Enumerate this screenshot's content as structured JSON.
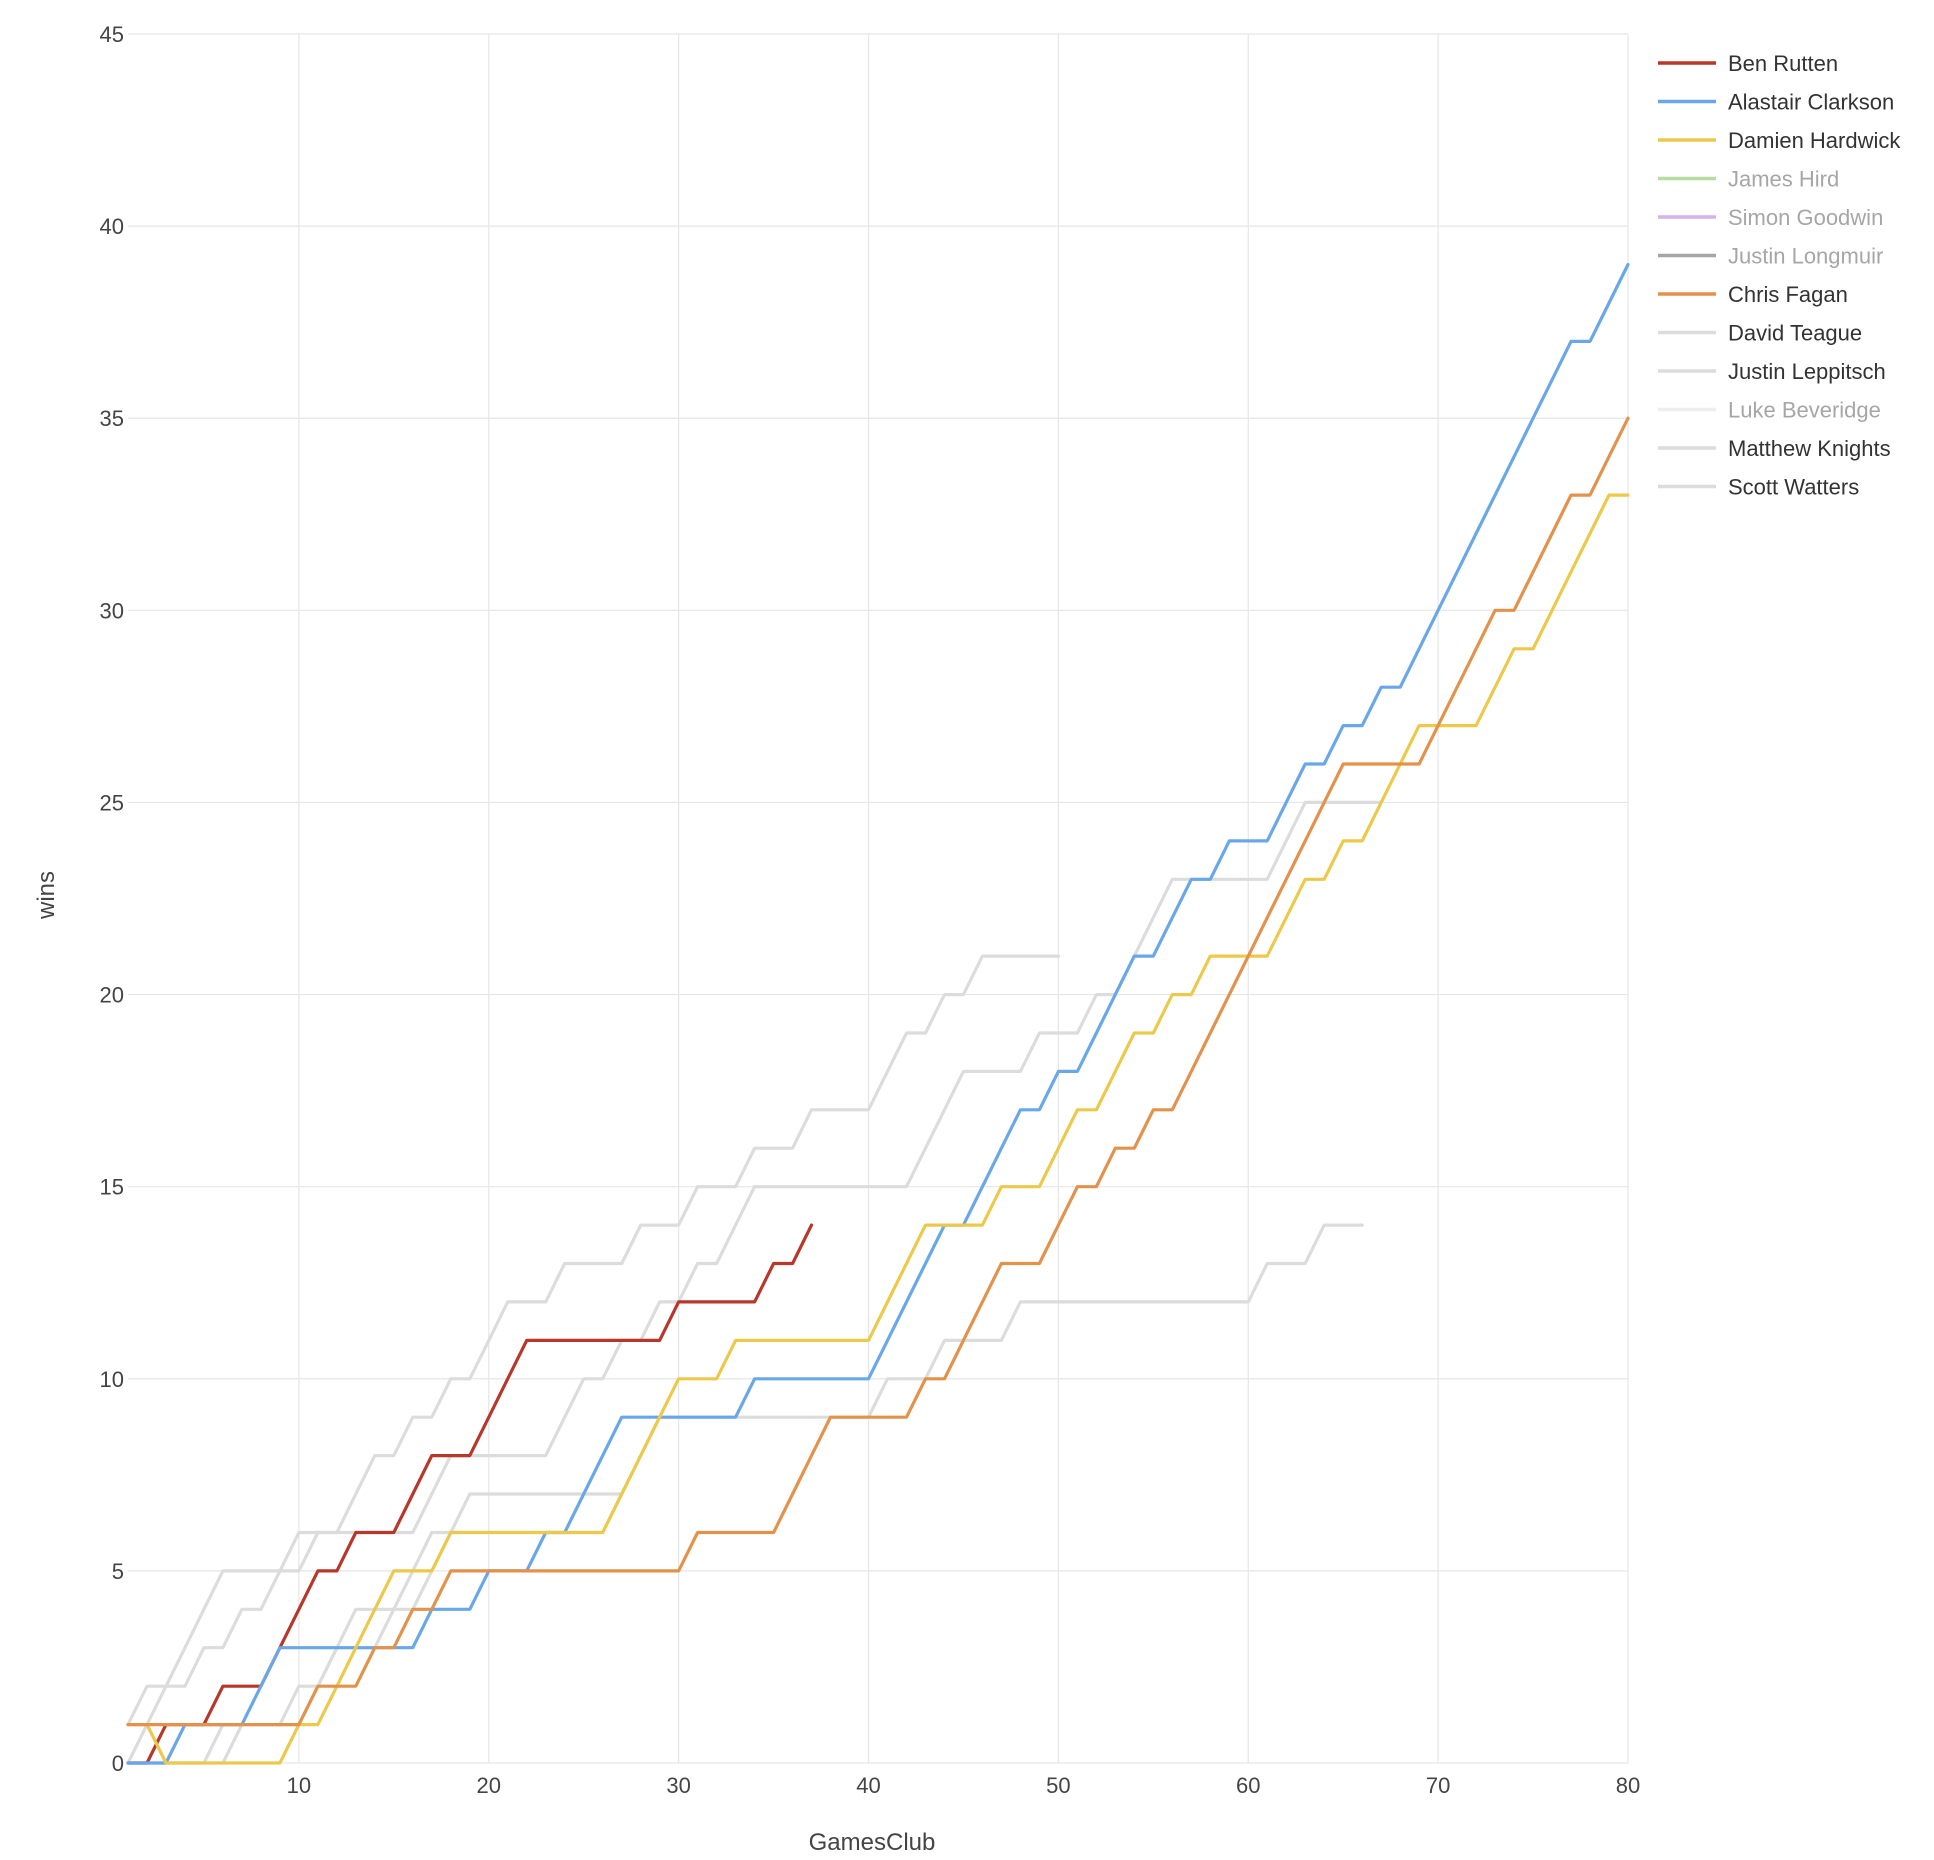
{
  "chart_data": {
    "type": "line",
    "xlabel": "GamesClub",
    "ylabel": "wins",
    "xlim": [
      1,
      80
    ],
    "ylim": [
      0,
      45
    ],
    "x_ticks": [
      10,
      20,
      30,
      40,
      50,
      60,
      70,
      80
    ],
    "y_ticks": [
      0,
      5,
      10,
      15,
      20,
      25,
      30,
      35,
      40,
      45
    ],
    "grid": true,
    "legend_position": "top-right",
    "series": [
      {
        "name": "Ben Rutten",
        "color": "#b8372b",
        "dimmed": false,
        "values": [
          0,
          0,
          1,
          1,
          1,
          2,
          2,
          2,
          3,
          4,
          5,
          5,
          6,
          6,
          6,
          7,
          8,
          8,
          8,
          9,
          10,
          11,
          11,
          11,
          11,
          11,
          11,
          11,
          11,
          12,
          12,
          12,
          12,
          12,
          13,
          13,
          14
        ]
      },
      {
        "name": "Alastair Clarkson",
        "color": "#6aa7e8",
        "dimmed": false,
        "values": [
          0,
          0,
          0,
          1,
          1,
          1,
          1,
          2,
          3,
          3,
          3,
          3,
          3,
          3,
          3,
          3,
          4,
          4,
          4,
          5,
          5,
          5,
          6,
          6,
          7,
          8,
          9,
          9,
          9,
          9,
          9,
          9,
          9,
          10,
          10,
          10,
          10,
          10,
          10,
          10,
          11,
          12,
          13,
          14,
          14,
          15,
          16,
          17,
          17,
          18,
          18,
          19,
          20,
          21,
          21,
          22,
          23,
          23,
          24,
          24,
          24,
          25,
          26,
          26,
          27,
          27,
          28,
          28,
          29,
          30,
          31,
          32,
          33,
          34,
          35,
          36,
          37,
          37,
          38,
          39
        ]
      },
      {
        "name": "Damien Hardwick",
        "color": "#ecc94b",
        "dimmed": false,
        "values": [
          1,
          1,
          0,
          0,
          0,
          0,
          0,
          0,
          0,
          1,
          1,
          2,
          3,
          4,
          5,
          5,
          5,
          6,
          6,
          6,
          6,
          6,
          6,
          6,
          6,
          6,
          7,
          8,
          9,
          10,
          10,
          10,
          11,
          11,
          11,
          11,
          11,
          11,
          11,
          11,
          12,
          13,
          14,
          14,
          14,
          14,
          15,
          15,
          15,
          16,
          17,
          17,
          18,
          19,
          19,
          20,
          20,
          21,
          21,
          21,
          21,
          22,
          23,
          23,
          24,
          24,
          25,
          26,
          27,
          27,
          27,
          27,
          28,
          29,
          29,
          30,
          31,
          32,
          33,
          33
        ]
      },
      {
        "name": "James Hird",
        "color": "#b8dca4",
        "dimmed": true,
        "values": []
      },
      {
        "name": "Simon Goodwin",
        "color": "#d6b1ec",
        "dimmed": true,
        "values": []
      },
      {
        "name": "Justin Longmuir",
        "color": "#a6a6a6",
        "dimmed": true,
        "values": []
      },
      {
        "name": "Chris Fagan",
        "color": "#e2924b",
        "dimmed": false,
        "values": [
          1,
          1,
          1,
          1,
          1,
          1,
          1,
          1,
          1,
          1,
          2,
          2,
          2,
          3,
          3,
          4,
          4,
          5,
          5,
          5,
          5,
          5,
          5,
          5,
          5,
          5,
          5,
          5,
          5,
          5,
          6,
          6,
          6,
          6,
          6,
          7,
          8,
          9,
          9,
          9,
          9,
          9,
          10,
          10,
          11,
          12,
          13,
          13,
          13,
          14,
          15,
          15,
          16,
          16,
          17,
          17,
          18,
          19,
          20,
          21,
          22,
          23,
          24,
          25,
          26,
          26,
          26,
          26,
          26,
          27,
          28,
          29,
          30,
          30,
          31,
          32,
          33,
          33,
          34,
          35
        ]
      },
      {
        "name": "David Teague",
        "color": "#dcdcdc",
        "dimmed": false,
        "values": [
          0,
          1,
          2,
          2,
          3,
          3,
          4,
          4,
          5,
          5,
          6,
          6,
          6,
          6,
          6,
          6,
          7,
          8,
          8,
          8,
          8,
          8,
          8,
          9,
          10,
          10,
          11,
          11,
          12,
          12,
          13,
          13,
          14,
          15,
          15,
          15,
          15,
          15,
          15,
          15,
          15,
          15,
          16,
          17,
          18,
          18,
          18,
          18,
          19,
          19,
          19,
          20,
          20,
          21,
          22,
          23,
          23,
          23,
          23,
          23,
          23,
          24,
          25,
          25,
          25,
          25,
          25
        ]
      },
      {
        "name": "Justin Leppitsch",
        "color": "#dcdcdc",
        "dimmed": false,
        "values": [
          0,
          0,
          0,
          0,
          0,
          0,
          1,
          1,
          1,
          2,
          2,
          3,
          4,
          4,
          4,
          5,
          6,
          6,
          7,
          7,
          7,
          7,
          7,
          7,
          7,
          7,
          7
        ]
      },
      {
        "name": "Luke Beveridge",
        "color": "#eeeeee",
        "dimmed": true,
        "values": []
      },
      {
        "name": "Matthew Knights",
        "color": "#dcdcdc",
        "dimmed": false,
        "values": [
          0,
          0,
          0,
          0,
          0,
          1,
          1,
          1,
          1,
          1,
          2,
          3,
          3,
          3,
          4,
          4,
          5,
          6,
          6,
          6,
          6,
          6,
          6,
          6,
          6,
          6,
          7,
          8,
          9,
          9,
          9,
          9,
          9,
          9,
          9,
          9,
          9,
          9,
          9,
          9,
          10,
          10,
          10,
          11,
          11,
          11,
          11,
          12,
          12,
          12,
          12,
          12,
          12,
          12,
          12,
          12,
          12,
          12,
          12,
          12,
          13,
          13,
          13,
          14,
          14,
          14
        ]
      },
      {
        "name": "Scott Watters",
        "color": "#dcdcdc",
        "dimmed": false,
        "values": [
          1,
          2,
          2,
          3,
          4,
          5,
          5,
          5,
          5,
          6,
          6,
          6,
          7,
          8,
          8,
          9,
          9,
          10,
          10,
          11,
          12,
          12,
          12,
          13,
          13,
          13,
          13,
          14,
          14,
          14,
          15,
          15,
          15,
          16,
          16,
          16,
          17,
          17,
          17,
          17,
          18,
          19,
          19,
          20,
          20,
          21,
          21,
          21,
          21,
          21
        ]
      }
    ]
  }
}
